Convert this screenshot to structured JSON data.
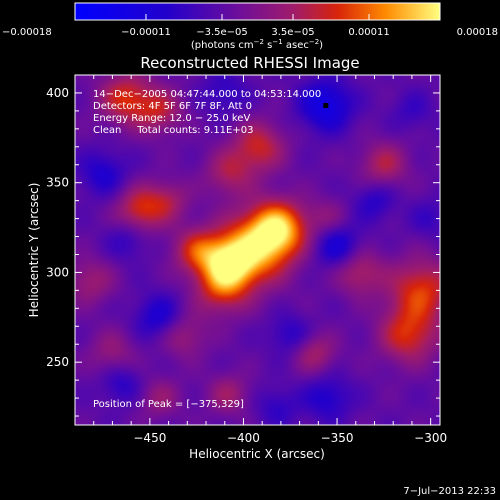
{
  "chart_data": {
    "type": "heatmap",
    "title": "Reconstructed RHESSI Image",
    "xlabel": "Heliocentric X (arcsec)",
    "ylabel": "Heliocentric Y (arcsec)",
    "xlim": [
      -490,
      -295
    ],
    "ylim": [
      215,
      410
    ],
    "x_ticks": [
      -450,
      -400,
      -350,
      -300
    ],
    "x_tick_labels": [
      "−450",
      "−400",
      "−350",
      "−300"
    ],
    "y_ticks": [
      250,
      300,
      350,
      400
    ],
    "y_tick_labels": [
      "250",
      "300",
      "350",
      "400"
    ],
    "colorbar": {
      "min": -0.00018,
      "max": 0.00018,
      "ticks": [
        -0.00018,
        -0.00011,
        -3.5e-05,
        3.5e-05,
        0.00011,
        0.00018
      ],
      "tick_labels": [
        "−0.00018",
        "−0.00011",
        "−3.5e−05",
        "3.5e−05",
        "0.00011",
        "0.00018"
      ],
      "unit_parts": [
        "(photons cm",
        "−2",
        " s",
        "−1",
        " asec",
        "−2",
        ")"
      ]
    },
    "annotations": [
      "14−Dec−2005 04:47:44.000 to 04:53:14.000",
      "Detectors: 4F 5F 6F 7F 8F, Att 0",
      "Energy Range: 12.0 − 25.0 keV",
      "Clean     Total counts: 9.11E+03"
    ],
    "peak_label": "Position of Peak = [−375,329]",
    "peak": {
      "x": -375,
      "y": 329
    },
    "min_marker": {
      "x": -356,
      "y": 393
    },
    "sources": [
      {
        "x": -382,
        "y": 324,
        "value": 1.0,
        "sigma": 11
      },
      {
        "x": -408,
        "y": 305,
        "value": 0.85,
        "sigma": 10
      },
      {
        "x": -395,
        "y": 312,
        "value": 0.75,
        "sigma": 14
      },
      {
        "x": -425,
        "y": 312,
        "value": 0.55,
        "sigma": 9
      },
      {
        "x": -412,
        "y": 290,
        "value": 0.5,
        "sigma": 10
      },
      {
        "x": -463,
        "y": 397,
        "value": 0.6,
        "sigma": 10
      },
      {
        "x": -445,
        "y": 390,
        "value": 0.45,
        "sigma": 9
      },
      {
        "x": -392,
        "y": 370,
        "value": 0.55,
        "sigma": 10
      },
      {
        "x": -408,
        "y": 355,
        "value": 0.4,
        "sigma": 9
      },
      {
        "x": -455,
        "y": 335,
        "value": 0.6,
        "sigma": 9
      },
      {
        "x": -440,
        "y": 340,
        "value": 0.35,
        "sigma": 8
      },
      {
        "x": -325,
        "y": 360,
        "value": 0.45,
        "sigma": 9
      },
      {
        "x": -338,
        "y": 300,
        "value": 0.45,
        "sigma": 9
      },
      {
        "x": -305,
        "y": 290,
        "value": 0.65,
        "sigma": 12
      },
      {
        "x": -312,
        "y": 265,
        "value": 0.6,
        "sigma": 11
      },
      {
        "x": -362,
        "y": 255,
        "value": 0.4,
        "sigma": 8
      },
      {
        "x": -432,
        "y": 265,
        "value": 0.35,
        "sigma": 9
      },
      {
        "x": -482,
        "y": 295,
        "value": 0.35,
        "sigma": 9
      },
      {
        "x": -470,
        "y": 255,
        "value": 0.3,
        "sigma": 9
      },
      {
        "x": -408,
        "y": 232,
        "value": 0.35,
        "sigma": 8
      },
      {
        "x": -445,
        "y": 230,
        "value": 0.3,
        "sigma": 8
      },
      {
        "x": -355,
        "y": 330,
        "value": 0.25,
        "sigma": 8
      },
      {
        "x": -356,
        "y": 393,
        "value": -0.55,
        "sigma": 10
      },
      {
        "x": -350,
        "y": 315,
        "value": -0.45,
        "sigma": 9
      },
      {
        "x": -475,
        "y": 355,
        "value": -0.35,
        "sigma": 9
      },
      {
        "x": -445,
        "y": 275,
        "value": -0.4,
        "sigma": 9
      },
      {
        "x": -355,
        "y": 230,
        "value": -0.35,
        "sigma": 9
      },
      {
        "x": -462,
        "y": 318,
        "value": -0.25,
        "sigma": 8
      },
      {
        "x": -330,
        "y": 340,
        "value": -0.3,
        "sigma": 8
      },
      {
        "x": -375,
        "y": 265,
        "value": -0.3,
        "sigma": 8
      },
      {
        "x": -465,
        "y": 238,
        "value": -0.3,
        "sigma": 8
      },
      {
        "x": -410,
        "y": 400,
        "value": -0.25,
        "sigma": 9
      },
      {
        "x": -382,
        "y": 225,
        "value": -0.25,
        "sigma": 8
      },
      {
        "x": -310,
        "y": 390,
        "value": -0.2,
        "sigma": 8
      },
      {
        "x": -300,
        "y": 330,
        "value": -0.2,
        "sigma": 8
      }
    ],
    "baseline": -0.18
  },
  "footer": {
    "timestamp": "7−Jul−2013 22:33"
  }
}
